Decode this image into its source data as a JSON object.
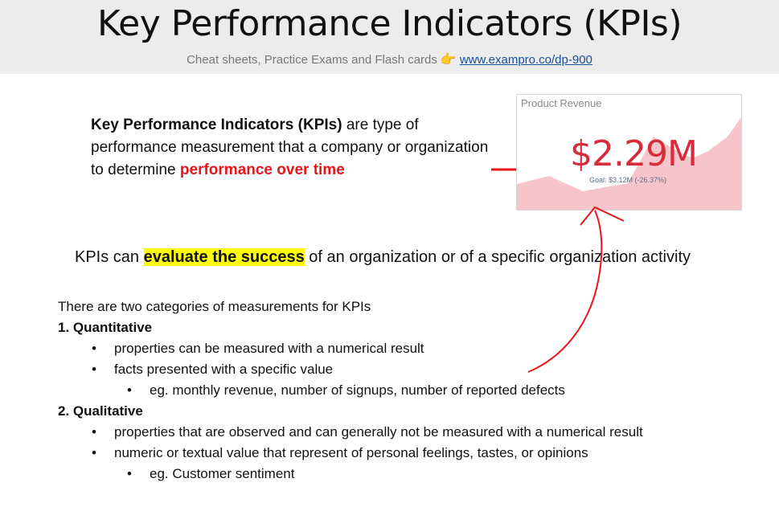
{
  "header": {
    "title": "Key Performance Indicators (KPIs)",
    "subtitle": "Cheat sheets, Practice Exams and Flash cards",
    "hand_icon": "pointing-hand-icon",
    "link": "www.exampro.co/dp-900"
  },
  "definition": {
    "bold_term": "Key Performance Indicators (KPIs)",
    "text1": " are type of performance measurement that a company or organization to determine ",
    "red_phrase": "performance over time"
  },
  "card": {
    "title": "Product Revenue",
    "value": "$2.29M",
    "goal": "Goal: $3.12M (-26.37%)",
    "accent_color": "#d92c3a",
    "fill_color": "#f6c5cb"
  },
  "evaluate": {
    "before": "KPIs can ",
    "highlight": "evaluate the success",
    "after": " of an organization or of a specific organization activity"
  },
  "categories": {
    "intro": "There are two categories of measurements for KPIs",
    "quant_heading": "1. Quantitative",
    "quant_b1": "properties can be measured with a numerical result",
    "quant_b2": "facts presented with a specific value",
    "quant_sub": "eg.  monthly revenue, number of signups, number of reported defects",
    "qual_heading": "2. Qualitative",
    "qual_b1": "properties that are observed and can generally not be measured with a numerical result",
    "qual_b2": "numeric or textual value that represent of personal feelings, tastes, or opinions",
    "qual_sub": "eg.  Customer sentiment",
    "bullet": "•"
  }
}
